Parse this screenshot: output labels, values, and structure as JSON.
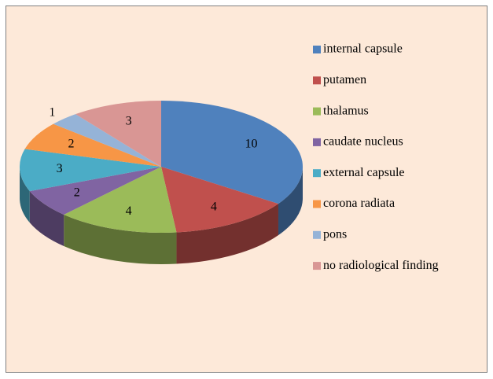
{
  "chart_data": {
    "type": "pie3d",
    "categories": [
      "internal capsule",
      "putamen",
      "thalamus",
      "caudate nucleus",
      "external capsule",
      "corona radiata",
      "pons",
      "no radiological finding"
    ],
    "values": [
      10,
      4,
      4,
      2,
      3,
      2,
      1,
      3
    ],
    "colors": [
      "#4f81bd",
      "#c0504d",
      "#9bbb59",
      "#8064a2",
      "#4bacc6",
      "#f79646",
      "#95b3d7",
      "#d99694"
    ],
    "legend": "right"
  }
}
